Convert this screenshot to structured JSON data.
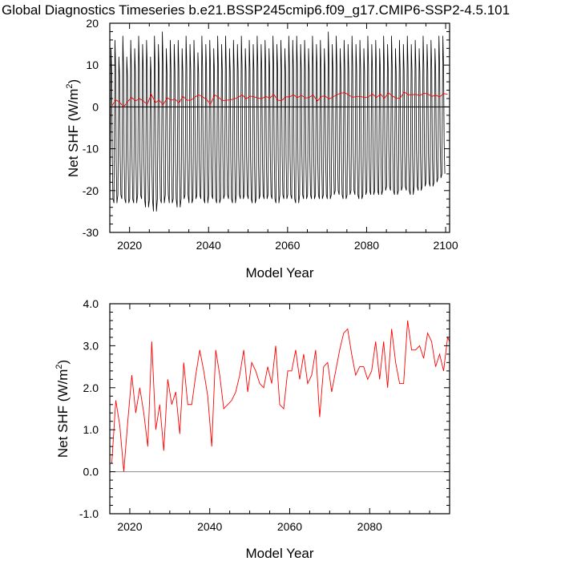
{
  "figure": {
    "title": "Global Diagnostics Timeseries b.e21.BSSP245cmip6.f09_g17.CMIP6-SSP2-4.5.101"
  },
  "chart_data": [
    {
      "type": "line",
      "xlabel": "Model Year",
      "ylabel": "Net SHF (W/m2)",
      "ylabel_main": "Net SHF (W/m",
      "ylabel_sup": "2",
      "ylabel_end": ")",
      "xlim": [
        2015,
        2101
      ],
      "ylim": [
        -30,
        20
      ],
      "xticks": [
        2020,
        2040,
        2060,
        2080,
        2100
      ],
      "yticks": [
        -30,
        -20,
        -10,
        0,
        10,
        20
      ],
      "xtick_labels": [
        "2020",
        "2040",
        "2060",
        "2080",
        "2100"
      ],
      "ytick_labels": [
        "-30",
        "-20",
        "-10",
        "0",
        "10",
        "20"
      ],
      "zero_line": 0,
      "series": [
        {
          "role": "monthly",
          "color": "#000000",
          "x_start": 2015,
          "x_end": 2100,
          "annual_max": [
            14,
            16,
            12,
            17,
            12,
            16,
            14,
            17,
            15,
            16,
            12,
            17,
            15,
            18,
            14,
            16,
            15,
            16,
            14,
            17,
            15,
            16,
            13,
            17,
            15,
            16,
            14,
            17,
            15,
            17,
            14,
            16,
            15,
            17,
            14,
            16,
            15,
            17,
            15,
            16,
            14,
            17,
            15,
            16,
            14,
            17,
            16,
            17,
            15,
            16,
            14,
            17,
            15,
            16,
            14,
            18,
            15,
            17,
            14,
            16,
            15,
            17,
            15,
            16,
            14,
            17,
            15,
            16,
            14,
            17,
            15,
            17,
            14,
            16,
            15,
            17,
            15,
            16,
            14,
            17,
            15,
            16,
            14,
            17,
            17
          ],
          "annual_min": [
            -22,
            -23,
            -21,
            -22,
            -23,
            -22,
            -23,
            -21,
            -22,
            -24,
            -22,
            -25,
            -22,
            -23,
            -21,
            -23,
            -22,
            -24,
            -22,
            -21,
            -23,
            -22,
            -21,
            -22,
            -23,
            -21,
            -22,
            -23,
            -22,
            -21,
            -22,
            -23,
            -21,
            -22,
            -21,
            -22,
            -23,
            -22,
            -21,
            -22,
            -21,
            -22,
            -23,
            -21,
            -22,
            -21,
            -22,
            -23,
            -21,
            -22,
            -21,
            -22,
            -21,
            -22,
            -21,
            -22,
            -21,
            -20,
            -21,
            -22,
            -21,
            -20,
            -21,
            -22,
            -21,
            -20,
            -21,
            -20,
            -21,
            -20,
            -19,
            -20,
            -21,
            -20,
            -19,
            -20,
            -21,
            -19,
            -20,
            -19,
            -18,
            -19,
            -18,
            -17,
            -16
          ]
        },
        {
          "role": "annual",
          "color": "#ff0000",
          "x_start": 2015.5,
          "values": [
            0.2,
            1.7,
            1.1,
            0.0,
            1.2,
            2.3,
            1.4,
            2.0,
            1.4,
            0.6,
            3.1,
            1.0,
            1.6,
            0.5,
            2.2,
            1.6,
            1.9,
            0.9,
            2.6,
            1.6,
            1.6,
            2.3,
            2.9,
            2.4,
            1.8,
            0.6,
            2.9,
            2.3,
            1.5,
            1.6,
            1.7,
            1.9,
            2.3,
            2.9,
            1.9,
            2.6,
            2.4,
            2.1,
            2.0,
            2.5,
            2.1,
            3.0,
            1.6,
            1.5,
            2.4,
            2.4,
            2.9,
            2.2,
            2.8,
            2.1,
            2.3,
            2.9,
            1.3,
            2.5,
            2.6,
            1.9,
            2.4,
            2.9,
            3.3,
            3.4,
            2.8,
            2.3,
            2.5,
            2.5,
            2.2,
            2.4,
            3.1,
            2.2,
            3.1,
            2.0,
            3.4,
            2.6,
            2.1,
            2.1,
            3.6,
            2.9,
            2.9,
            3.0,
            2.7,
            3.3,
            3.1,
            2.5,
            2.8,
            2.4,
            3.2,
            3.0
          ]
        }
      ]
    },
    {
      "type": "line",
      "xlabel": "Model Year",
      "ylabel": "Net SHF (W/m2)",
      "ylabel_main": "Net SHF (W/m",
      "ylabel_sup": "2",
      "ylabel_end": ")",
      "xlim": [
        2015,
        2100
      ],
      "ylim": [
        -1.0,
        4.0
      ],
      "xticks": [
        2020,
        2040,
        2060,
        2080
      ],
      "yticks": [
        -1.0,
        0.0,
        1.0,
        2.0,
        3.0,
        4.0
      ],
      "xtick_labels": [
        "2020",
        "2040",
        "2060",
        "2080"
      ],
      "ytick_labels": [
        "-1.0",
        "0.0",
        "1.0",
        "2.0",
        "3.0",
        "4.0"
      ],
      "zero_line": 0,
      "series": [
        {
          "role": "annual",
          "color": "#ff0000",
          "x_start": 2015.5,
          "values": [
            0.2,
            1.7,
            1.1,
            0.0,
            1.2,
            2.3,
            1.4,
            2.0,
            1.4,
            0.6,
            3.1,
            1.0,
            1.6,
            0.5,
            2.2,
            1.6,
            1.9,
            0.9,
            2.6,
            1.6,
            1.6,
            2.3,
            2.9,
            2.4,
            1.8,
            0.6,
            2.9,
            2.3,
            1.5,
            1.6,
            1.7,
            1.9,
            2.3,
            2.9,
            1.9,
            2.6,
            2.4,
            2.1,
            2.0,
            2.5,
            2.1,
            3.0,
            1.6,
            1.5,
            2.4,
            2.4,
            2.9,
            2.2,
            2.8,
            2.1,
            2.3,
            2.9,
            1.3,
            2.5,
            2.6,
            1.9,
            2.4,
            2.9,
            3.3,
            3.4,
            2.8,
            2.3,
            2.5,
            2.5,
            2.2,
            2.4,
            3.1,
            2.2,
            3.1,
            2.0,
            3.4,
            2.6,
            2.1,
            2.1,
            3.6,
            2.9,
            2.9,
            3.0,
            2.7,
            3.3,
            3.1,
            2.5,
            2.8,
            2.4,
            3.2,
            3.0
          ]
        }
      ]
    }
  ]
}
